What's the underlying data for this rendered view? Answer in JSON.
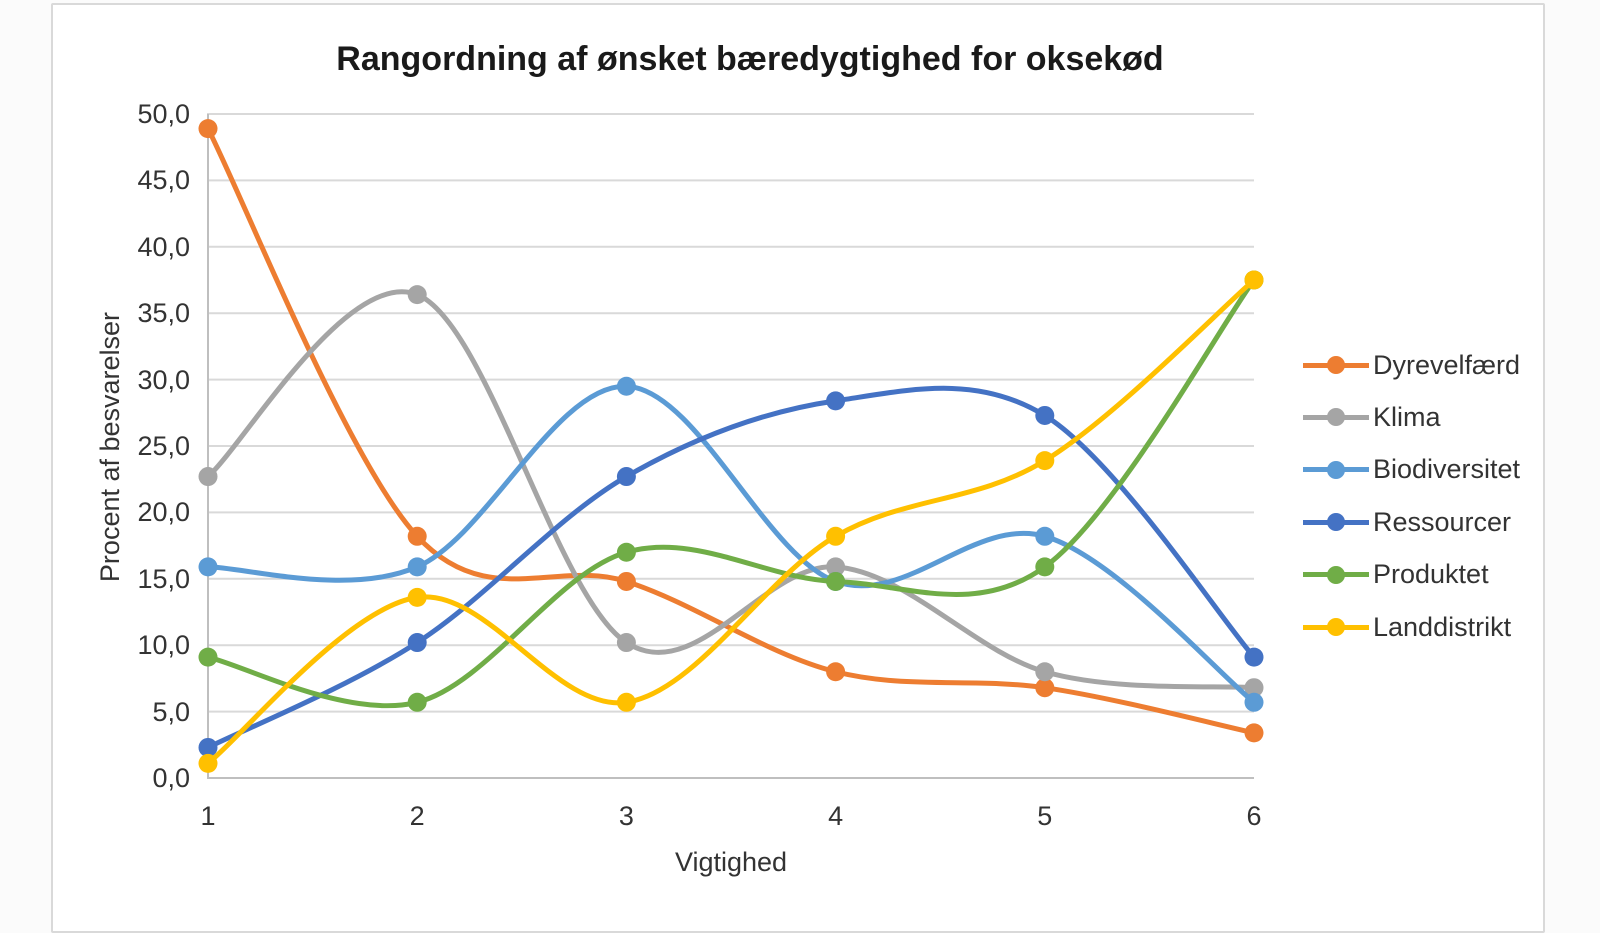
{
  "chart_data": {
    "type": "line",
    "title": "Rangordning af ønsket bæredygtighed for oksekød",
    "xlabel": "Vigtighed",
    "ylabel": "Procent af besvarelser",
    "line_style": "smooth-with-markers",
    "grid": "horizontal",
    "legend_position": "right",
    "x": [
      1,
      2,
      3,
      4,
      5,
      6
    ],
    "x_tick_labels": [
      "1",
      "2",
      "3",
      "4",
      "5",
      "6"
    ],
    "ylim": [
      0,
      50
    ],
    "y_tick_step": 5,
    "y_tick_labels": [
      "0,0",
      "5,0",
      "10,0",
      "15,0",
      "20,0",
      "25,0",
      "30,0",
      "35,0",
      "40,0",
      "45,0",
      "50,0"
    ],
    "series": [
      {
        "name": "Dyrevelfærd",
        "color": "#ED7D31",
        "values": [
          48.9,
          18.2,
          14.8,
          8.0,
          6.8,
          3.4
        ]
      },
      {
        "name": "Klima",
        "color": "#A5A5A5",
        "values": [
          22.7,
          36.4,
          10.2,
          15.9,
          8.0,
          6.8
        ]
      },
      {
        "name": "Biodiversitet",
        "color": "#5B9BD5",
        "values": [
          15.9,
          15.9,
          29.5,
          14.8,
          18.2,
          5.7
        ]
      },
      {
        "name": "Ressourcer",
        "color": "#4472C4",
        "values": [
          2.3,
          10.2,
          22.7,
          28.4,
          27.3,
          9.1
        ]
      },
      {
        "name": "Produktet",
        "color": "#70AD47",
        "values": [
          9.1,
          5.7,
          17.0,
          14.8,
          15.9,
          37.5
        ]
      },
      {
        "name": "Landdistrikt",
        "color": "#FFC000",
        "values": [
          1.1,
          13.6,
          5.7,
          18.2,
          23.9,
          37.5
        ]
      }
    ]
  },
  "colors": {
    "gridline": "#D9D9D9",
    "axis_line": "#BFBFBF",
    "frame_border": "#D9D9D9",
    "tick_text": "#333333",
    "title_text": "#1A1A1A"
  }
}
